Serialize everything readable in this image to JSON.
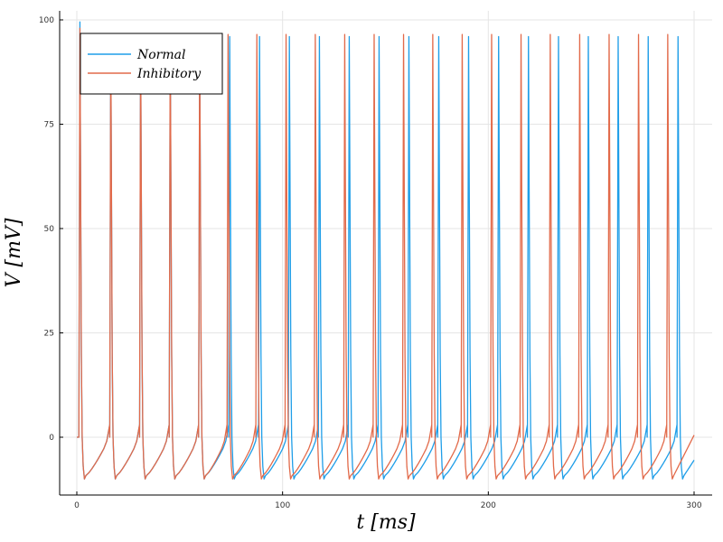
{
  "chart_data": {
    "type": "line",
    "title": "",
    "xlabel": "t [ms]",
    "ylabel": "V [mV]",
    "xlim": [
      0,
      300
    ],
    "ylim": [
      -12,
      102
    ],
    "xticks": [
      0,
      100,
      200,
      300
    ],
    "yticks": [
      0,
      25,
      50,
      75,
      100
    ],
    "xtick_labels": [
      "0",
      "100",
      "200",
      "300"
    ],
    "ytick_labels": [
      "0",
      "25",
      "50",
      "75",
      "100"
    ],
    "grid": true,
    "legend_position": "top-left",
    "series": [
      {
        "name": "Normal",
        "color": "#1f9ee8",
        "initial_v": 0,
        "final_v": -5.5,
        "spike_times": [
          1.0,
          16.0,
          30.5,
          44.9,
          59.2,
          73.8,
          88.3,
          102.8,
          117.4,
          131.9,
          146.4,
          160.9,
          175.4,
          189.9,
          204.5,
          219.0,
          233.6,
          248.1,
          262.6,
          277.2,
          291.7
        ],
        "spike_peaks": [
          99.5,
          96.0,
          96.0,
          96.0,
          96.0,
          96.0,
          96.0,
          96.0,
          96.0,
          96.0,
          96.0,
          96.0,
          96.0,
          96.0,
          96.0,
          96.0,
          96.0,
          96.0,
          96.0,
          96.0,
          96.0
        ]
      },
      {
        "name": "Inhibitory",
        "color": "#e26a4a",
        "initial_v": 0,
        "final_v": 0.5,
        "spike_times": [
          1.0,
          16.0,
          30.5,
          44.9,
          59.2,
          73.0,
          87.0,
          101.2,
          115.4,
          129.7,
          144.0,
          158.3,
          172.5,
          186.8,
          201.1,
          215.4,
          229.6,
          243.9,
          258.2,
          272.5,
          286.7
        ],
        "spike_peaks": [
          98.0,
          96.0,
          96.5,
          96.5,
          96.5,
          96.5,
          96.5,
          96.5,
          96.5,
          96.5,
          96.5,
          96.5,
          96.5,
          96.5,
          96.5,
          96.5,
          96.5,
          96.5,
          96.5,
          96.5,
          96.5
        ]
      }
    ]
  }
}
